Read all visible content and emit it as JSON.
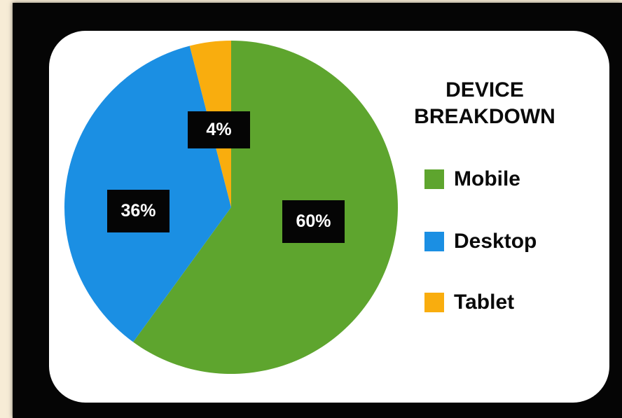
{
  "chart_data": {
    "type": "pie",
    "title": "DEVICE BREAKDOWN",
    "title_lines": [
      "DEVICE",
      "BREAKDOWN"
    ],
    "slices": [
      {
        "name": "Mobile",
        "value": 60,
        "label": "60%",
        "color": "#5ea52e"
      },
      {
        "name": "Desktop",
        "value": 36,
        "label": "36%",
        "color": "#1b8fe3"
      },
      {
        "name": "Tablet",
        "value": 4,
        "label": "4%",
        "color": "#f9ad0e"
      }
    ],
    "legend_placement": "right"
  }
}
